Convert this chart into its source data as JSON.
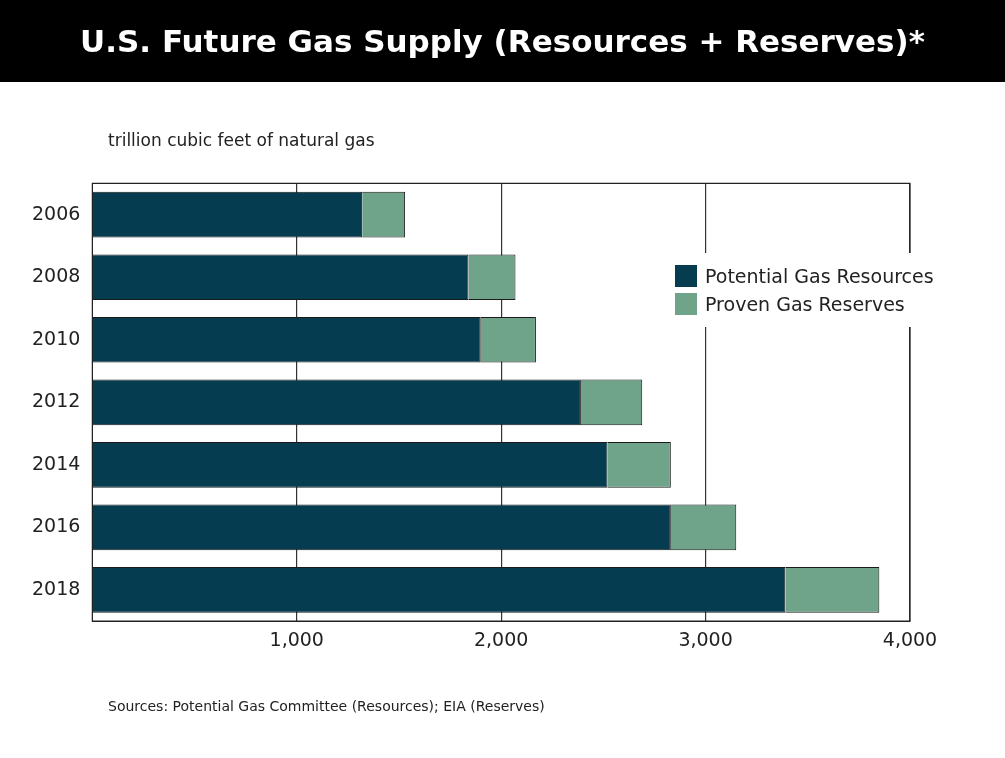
{
  "chart_data": {
    "type": "bar",
    "orientation": "horizontal",
    "stacked": true,
    "title": "U.S. Future Gas Supply (Resources + Reserves)*",
    "subtitle": "trillion cubic feet of natural gas",
    "categories": [
      "2006",
      "2008",
      "2010",
      "2012",
      "2014",
      "2016",
      "2018"
    ],
    "series": [
      {
        "name": "Potential Gas Resources",
        "color": "#053c50",
        "values": [
          1320,
          1840,
          1900,
          2390,
          2520,
          2830,
          3390
        ]
      },
      {
        "name": "Proven Gas Reserves",
        "color": "#6fa38a",
        "values": [
          210,
          230,
          270,
          300,
          310,
          320,
          460
        ]
      }
    ],
    "xlim": [
      0,
      4000
    ],
    "xticks": [
      {
        "value": 1000,
        "label": "1,000"
      },
      {
        "value": 2000,
        "label": "2,000"
      },
      {
        "value": 3000,
        "label": "3,000"
      },
      {
        "value": 4000,
        "label": "4,000"
      }
    ],
    "grid": "x",
    "legend": "top right",
    "annotations": [
      "Sources: Potential Gas Committee (Resources); EIA (Reserves)"
    ]
  }
}
